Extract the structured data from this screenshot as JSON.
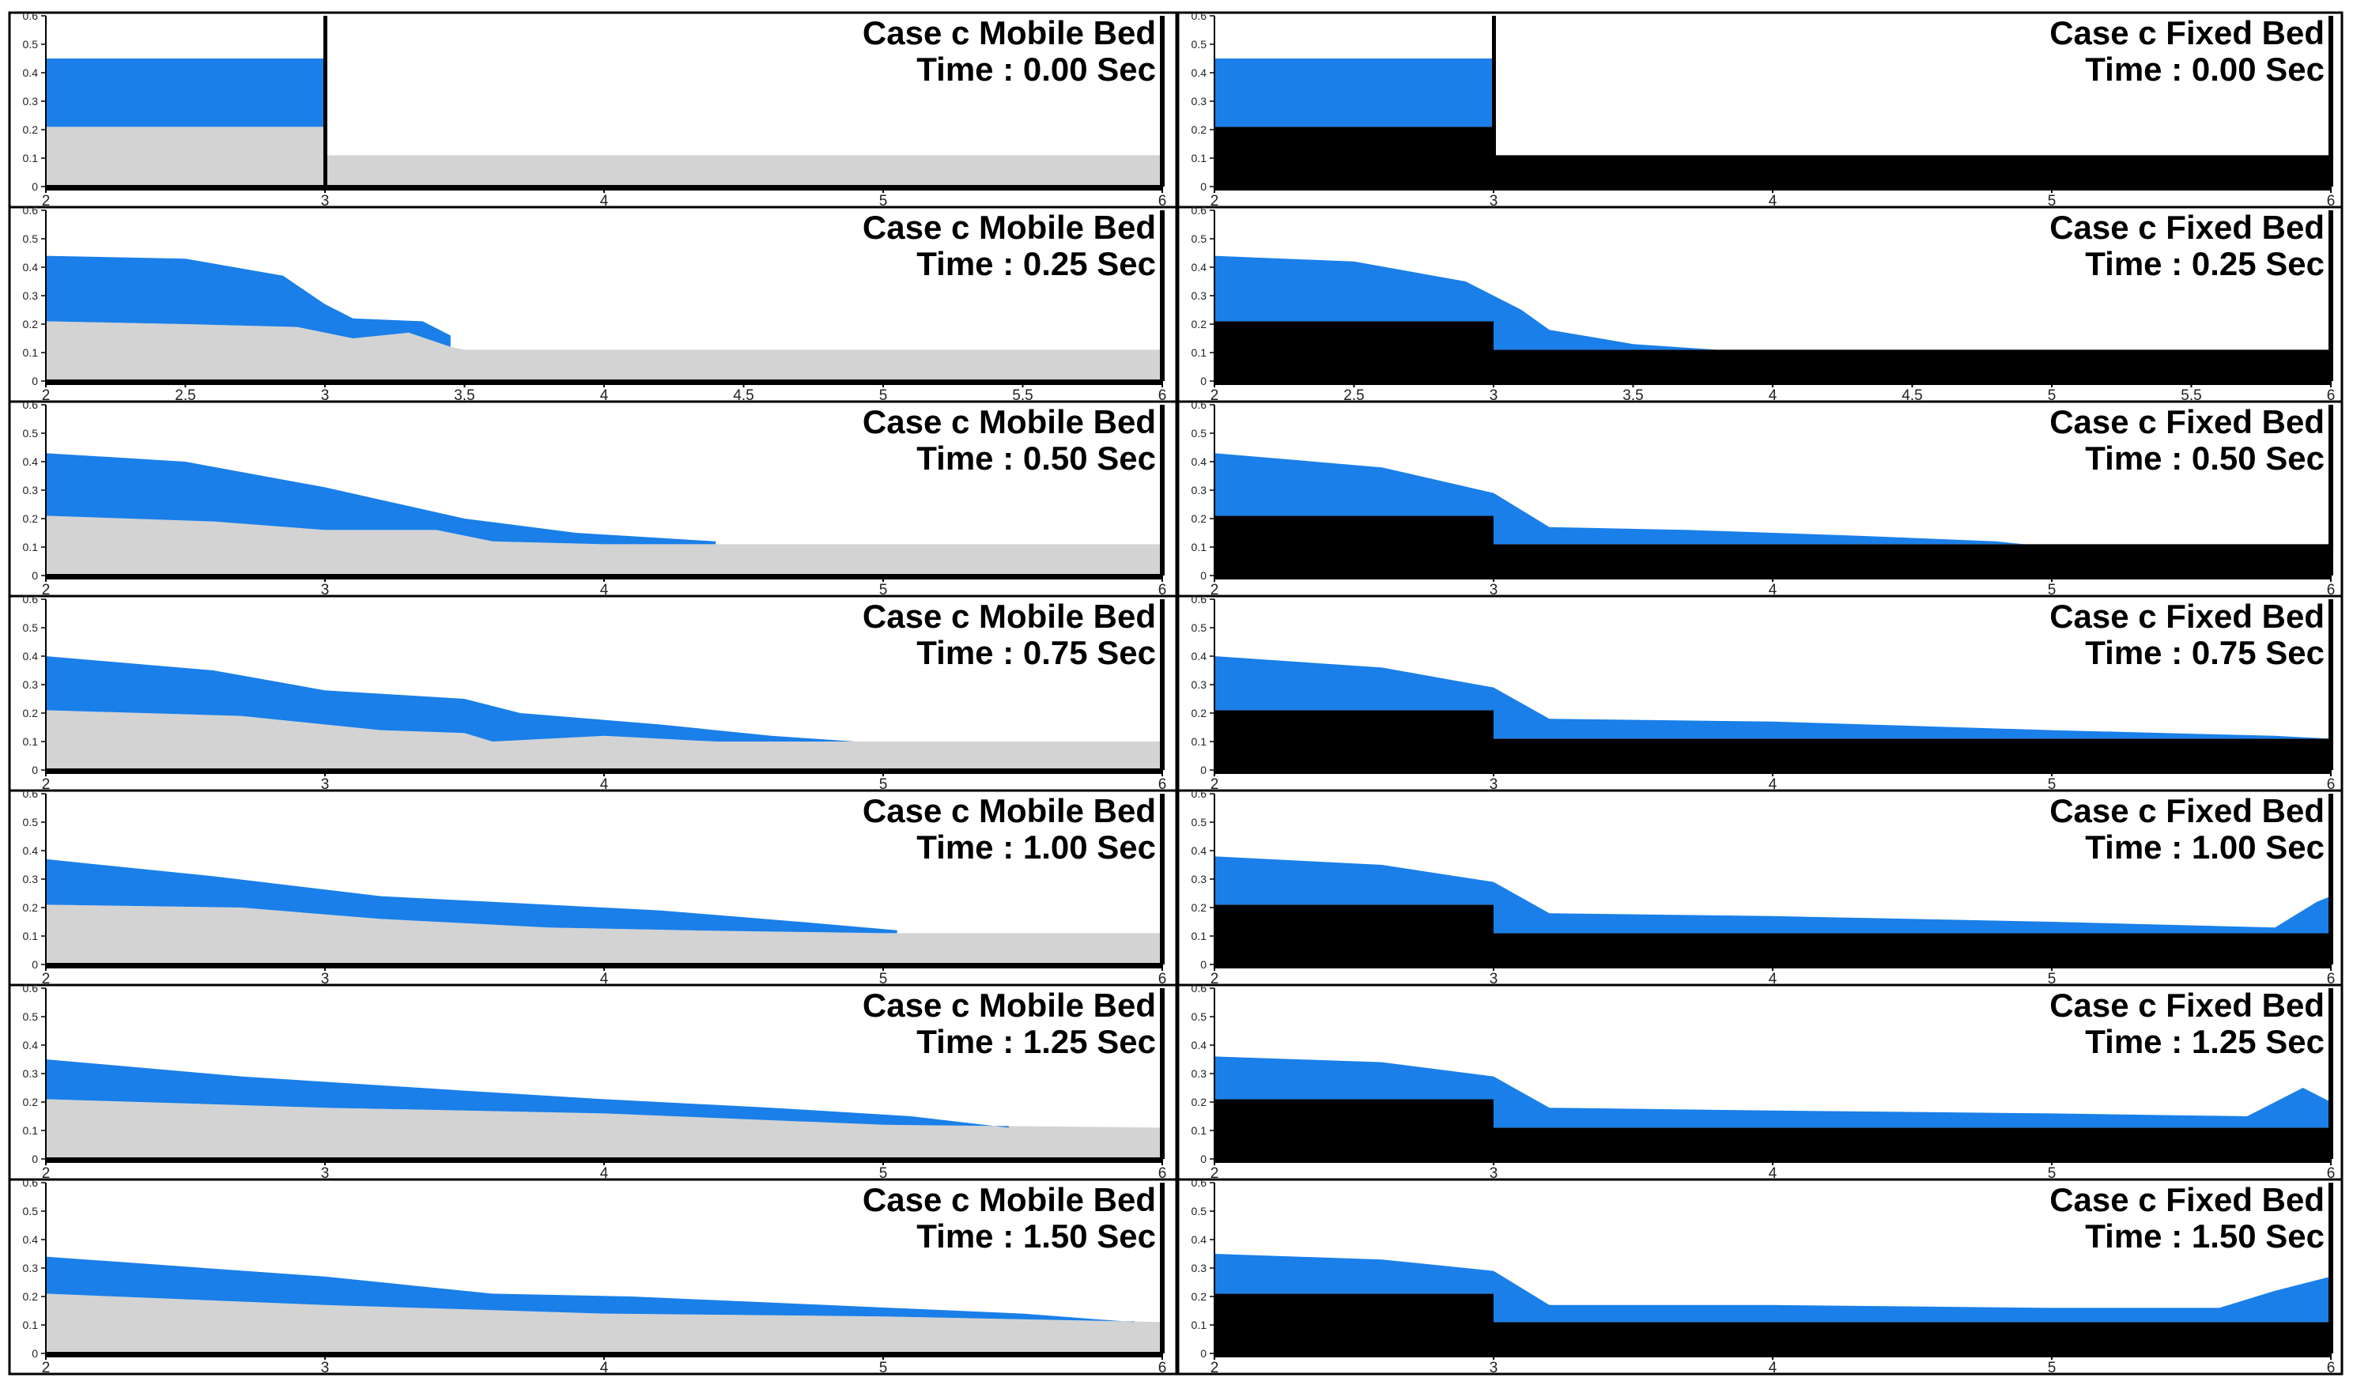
{
  "figure": {
    "rows": [
      {
        "time_label": "Time : 0.00 Sec"
      },
      {
        "time_label": "Time : 0.25 Sec"
      },
      {
        "time_label": "Time : 0.50 Sec"
      },
      {
        "time_label": "Time : 0.75 Sec"
      },
      {
        "time_label": "Time : 1.00 Sec"
      },
      {
        "time_label": "Time : 1.25 Sec"
      },
      {
        "time_label": "Time : 1.50 Sec"
      }
    ],
    "columns": [
      {
        "case_label": "Case c Mobile Bed",
        "bed_type": "mobile"
      },
      {
        "case_label": "Case c Fixed Bed",
        "bed_type": "fixed"
      }
    ],
    "x_ticks_standard": [
      "2",
      "3",
      "4",
      "5",
      "6"
    ],
    "x_ticks_fine": [
      "2",
      "2.5",
      "3",
      "3.5",
      "4",
      "4.5",
      "5",
      "5.5",
      "6"
    ],
    "y_ticks_first": [
      "0",
      "0.1",
      "0.2",
      "0.3",
      "0.4",
      "0.5",
      "0.6"
    ],
    "y_ticks_other": [
      "0",
      "0.1",
      "0.2",
      "0.3",
      "0.4",
      "0.5",
      "0.6"
    ]
  },
  "colors": {
    "water": "#1a7fe8",
    "mobile_bed": "#d3d3d3",
    "fixed_bed": "#000000",
    "frame": "#000000"
  },
  "profiles": {
    "mobile": [
      {
        "bed": [
          [
            2,
            0.21
          ],
          [
            3,
            0.21
          ],
          [
            3,
            0.11
          ],
          [
            6,
            0.11
          ]
        ],
        "water": [
          [
            2,
            0.45
          ],
          [
            3,
            0.45
          ],
          [
            3,
            0.21
          ]
        ],
        "gate": true
      },
      {
        "bed": [
          [
            2,
            0.21
          ],
          [
            2.5,
            0.2
          ],
          [
            2.9,
            0.19
          ],
          [
            3.1,
            0.15
          ],
          [
            3.3,
            0.17
          ],
          [
            3.45,
            0.12
          ],
          [
            3.5,
            0.11
          ],
          [
            6,
            0.11
          ]
        ],
        "water": [
          [
            2,
            0.44
          ],
          [
            2.5,
            0.43
          ],
          [
            2.85,
            0.37
          ],
          [
            3.0,
            0.27
          ],
          [
            3.1,
            0.22
          ],
          [
            3.35,
            0.21
          ],
          [
            3.45,
            0.16
          ]
        ]
      },
      {
        "bed": [
          [
            2,
            0.21
          ],
          [
            2.6,
            0.19
          ],
          [
            3,
            0.16
          ],
          [
            3.4,
            0.16
          ],
          [
            3.6,
            0.12
          ],
          [
            4,
            0.11
          ],
          [
            6,
            0.11
          ]
        ],
        "water": [
          [
            2,
            0.43
          ],
          [
            2.5,
            0.4
          ],
          [
            3,
            0.31
          ],
          [
            3.5,
            0.2
          ],
          [
            3.9,
            0.15
          ],
          [
            4.4,
            0.12
          ]
        ]
      },
      {
        "bed": [
          [
            2,
            0.21
          ],
          [
            2.7,
            0.19
          ],
          [
            3.2,
            0.14
          ],
          [
            3.5,
            0.13
          ],
          [
            3.6,
            0.1
          ],
          [
            4,
            0.12
          ],
          [
            4.4,
            0.1
          ],
          [
            4.7,
            0.1
          ],
          [
            6,
            0.1
          ]
        ],
        "water": [
          [
            2,
            0.4
          ],
          [
            2.6,
            0.35
          ],
          [
            3,
            0.28
          ],
          [
            3.5,
            0.25
          ],
          [
            3.7,
            0.2
          ],
          [
            4.2,
            0.16
          ],
          [
            4.6,
            0.12
          ],
          [
            4.9,
            0.1
          ]
        ]
      },
      {
        "bed": [
          [
            2,
            0.21
          ],
          [
            2.7,
            0.2
          ],
          [
            3.2,
            0.16
          ],
          [
            3.8,
            0.13
          ],
          [
            4.3,
            0.12
          ],
          [
            5,
            0.11
          ],
          [
            6,
            0.11
          ]
        ],
        "water": [
          [
            2,
            0.37
          ],
          [
            2.6,
            0.31
          ],
          [
            3.2,
            0.24
          ],
          [
            3.6,
            0.22
          ],
          [
            4.2,
            0.19
          ],
          [
            4.7,
            0.15
          ],
          [
            5.05,
            0.12
          ]
        ]
      },
      {
        "bed": [
          [
            2,
            0.21
          ],
          [
            3,
            0.18
          ],
          [
            4,
            0.16
          ],
          [
            5,
            0.12
          ],
          [
            6,
            0.11
          ]
        ],
        "water": [
          [
            2,
            0.35
          ],
          [
            2.7,
            0.29
          ],
          [
            3.5,
            0.24
          ],
          [
            4,
            0.21
          ],
          [
            4.6,
            0.18
          ],
          [
            5.1,
            0.15
          ],
          [
            5.45,
            0.11
          ]
        ]
      },
      {
        "bed": [
          [
            2,
            0.21
          ],
          [
            3,
            0.17
          ],
          [
            4,
            0.14
          ],
          [
            5,
            0.13
          ],
          [
            6,
            0.11
          ]
        ],
        "water": [
          [
            2,
            0.34
          ],
          [
            3,
            0.27
          ],
          [
            3.6,
            0.21
          ],
          [
            4.1,
            0.2
          ],
          [
            4.8,
            0.17
          ],
          [
            5.5,
            0.14
          ],
          [
            5.9,
            0.11
          ]
        ]
      }
    ],
    "fixed": [
      {
        "water": [
          [
            2,
            0.45
          ],
          [
            3,
            0.45
          ],
          [
            3,
            0.21
          ]
        ],
        "gate": true
      },
      {
        "water": [
          [
            2,
            0.44
          ],
          [
            2.5,
            0.42
          ],
          [
            2.9,
            0.35
          ],
          [
            3.1,
            0.25
          ],
          [
            3.2,
            0.18
          ],
          [
            3.5,
            0.13
          ],
          [
            3.8,
            0.11
          ]
        ]
      },
      {
        "water": [
          [
            2,
            0.43
          ],
          [
            2.6,
            0.38
          ],
          [
            3,
            0.29
          ],
          [
            3.2,
            0.17
          ],
          [
            3.7,
            0.16
          ],
          [
            4.3,
            0.14
          ],
          [
            4.8,
            0.12
          ],
          [
            4.9,
            0.11
          ]
        ]
      },
      {
        "water": [
          [
            2,
            0.4
          ],
          [
            2.6,
            0.36
          ],
          [
            3,
            0.29
          ],
          [
            3.2,
            0.18
          ],
          [
            4,
            0.17
          ],
          [
            5,
            0.14
          ],
          [
            5.8,
            0.12
          ],
          [
            6,
            0.11
          ]
        ]
      },
      {
        "water": [
          [
            2,
            0.38
          ],
          [
            2.6,
            0.35
          ],
          [
            3,
            0.29
          ],
          [
            3.2,
            0.18
          ],
          [
            4,
            0.17
          ],
          [
            5,
            0.15
          ],
          [
            5.8,
            0.13
          ],
          [
            5.95,
            0.22
          ],
          [
            6,
            0.24
          ]
        ]
      },
      {
        "water": [
          [
            2,
            0.36
          ],
          [
            2.6,
            0.34
          ],
          [
            3,
            0.29
          ],
          [
            3.2,
            0.18
          ],
          [
            4,
            0.17
          ],
          [
            5,
            0.16
          ],
          [
            5.7,
            0.15
          ],
          [
            5.9,
            0.25
          ],
          [
            6,
            0.2
          ]
        ]
      },
      {
        "water": [
          [
            2,
            0.35
          ],
          [
            2.6,
            0.33
          ],
          [
            3,
            0.29
          ],
          [
            3.2,
            0.17
          ],
          [
            4,
            0.17
          ],
          [
            5,
            0.16
          ],
          [
            5.6,
            0.16
          ],
          [
            5.8,
            0.22
          ],
          [
            6,
            0.27
          ]
        ]
      }
    ]
  }
}
